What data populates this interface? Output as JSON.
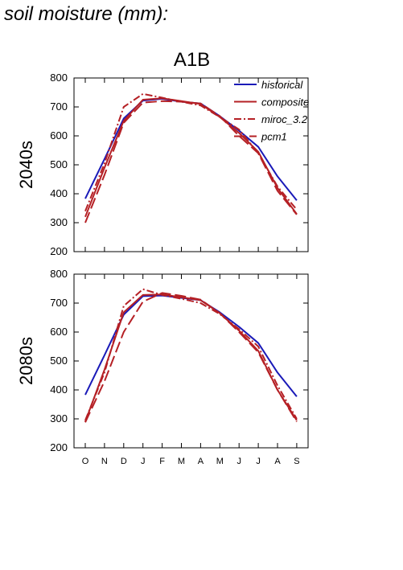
{
  "figure": {
    "title": "soil moisture (mm):"
  },
  "colors": {
    "historical": "#1a1ab8",
    "scenario": "#b52025"
  },
  "chart_data": [
    {
      "type": "line",
      "panel_title": "A1B",
      "ylabel": "2040s",
      "xlabel": "",
      "ylim": [
        200,
        800
      ],
      "yticks": [
        200,
        300,
        400,
        500,
        600,
        700,
        800
      ],
      "categories": [
        "O",
        "N",
        "D",
        "J",
        "F",
        "M",
        "A",
        "M",
        "J",
        "J",
        "A",
        "S"
      ],
      "legend": {
        "placement": "top-right",
        "entries": [
          "historical",
          "composite",
          "miroc_3.2",
          "pcm1"
        ]
      },
      "series": [
        {
          "name": "historical",
          "style": "solid",
          "color": "#1a1ab8",
          "values": [
            383,
            520,
            660,
            722,
            728,
            718,
            712,
            668,
            618,
            562,
            460,
            377
          ]
        },
        {
          "name": "composite",
          "style": "solid",
          "color": "#b52025",
          "values": [
            320,
            490,
            652,
            725,
            730,
            720,
            710,
            665,
            610,
            545,
            420,
            330
          ]
        },
        {
          "name": "miroc_3.2",
          "style": "dashdot",
          "color": "#b52025",
          "values": [
            340,
            505,
            700,
            745,
            732,
            718,
            705,
            665,
            622,
            540,
            425,
            345
          ]
        },
        {
          "name": "pcm1",
          "style": "longdash",
          "color": "#b52025",
          "values": [
            300,
            465,
            645,
            715,
            720,
            718,
            712,
            668,
            600,
            540,
            410,
            328
          ]
        }
      ]
    },
    {
      "type": "line",
      "panel_title": "",
      "ylabel": "2080s",
      "xlabel": "",
      "ylim": [
        200,
        800
      ],
      "yticks": [
        200,
        300,
        400,
        500,
        600,
        700,
        800
      ],
      "categories": [
        "O",
        "N",
        "D",
        "J",
        "F",
        "M",
        "A",
        "M",
        "J",
        "J",
        "A",
        "S"
      ],
      "series": [
        {
          "name": "historical",
          "style": "solid",
          "color": "#1a1ab8",
          "values": [
            383,
            520,
            660,
            724,
            726,
            718,
            710,
            668,
            618,
            562,
            460,
            377
          ]
        },
        {
          "name": "composite",
          "style": "solid",
          "color": "#b52025",
          "values": [
            290,
            470,
            668,
            728,
            730,
            720,
            710,
            665,
            605,
            535,
            400,
            295
          ]
        },
        {
          "name": "miroc_3.2",
          "style": "dashdot",
          "color": "#b52025",
          "values": [
            295,
            460,
            690,
            748,
            728,
            715,
            700,
            662,
            610,
            550,
            415,
            300
          ]
        },
        {
          "name": "pcm1",
          "style": "longdash",
          "color": "#b52025",
          "values": [
            288,
            430,
            600,
            705,
            735,
            725,
            712,
            665,
            600,
            530,
            400,
            290
          ]
        }
      ]
    }
  ]
}
